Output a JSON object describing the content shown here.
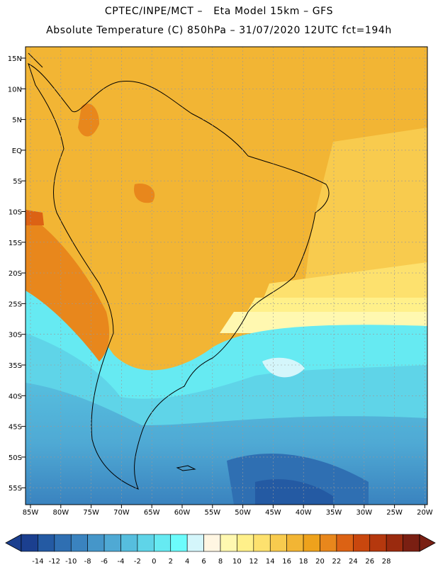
{
  "header": {
    "line1": "CPTEC/INPE/MCT –   Eta Model 15km – GFS",
    "line2": "Absolute Temperature (C) 850hPa – 31/07/2020 12UTC fct=194h"
  },
  "axes": {
    "lat_labels": [
      "15N",
      "10N",
      "5N",
      "EQ",
      "5S",
      "10S",
      "15S",
      "20S",
      "25S",
      "30S",
      "35S",
      "40S",
      "45S",
      "50S",
      "55S"
    ],
    "lon_labels": [
      "85W",
      "80W",
      "75W",
      "70W",
      "65W",
      "60W",
      "55W",
      "50W",
      "45W",
      "40W",
      "35W",
      "30W",
      "25W",
      "20W"
    ]
  },
  "colorbar": {
    "labels": [
      "-14",
      "-12",
      "-10",
      "-8",
      "-6",
      "-4",
      "-2",
      "0",
      "2",
      "4",
      "6",
      "8",
      "10",
      "12",
      "14",
      "16",
      "18",
      "20",
      "22",
      "24",
      "26",
      "28"
    ],
    "colors": [
      "#1b3f8f",
      "#245aa3",
      "#2f6fb2",
      "#3a83bf",
      "#4596c9",
      "#4fa9d4",
      "#56bede",
      "#5fd4e8",
      "#66eaf2",
      "#6cfcfc",
      "#d4f6fb",
      "#fff6e2",
      "#fff8b0",
      "#fff08a",
      "#fde16e",
      "#f8cb4e",
      "#f2b534",
      "#eea21c",
      "#e8871c",
      "#dc6214",
      "#c9470e",
      "#b5380e",
      "#9a2a0e",
      "#7a1f12"
    ]
  }
}
